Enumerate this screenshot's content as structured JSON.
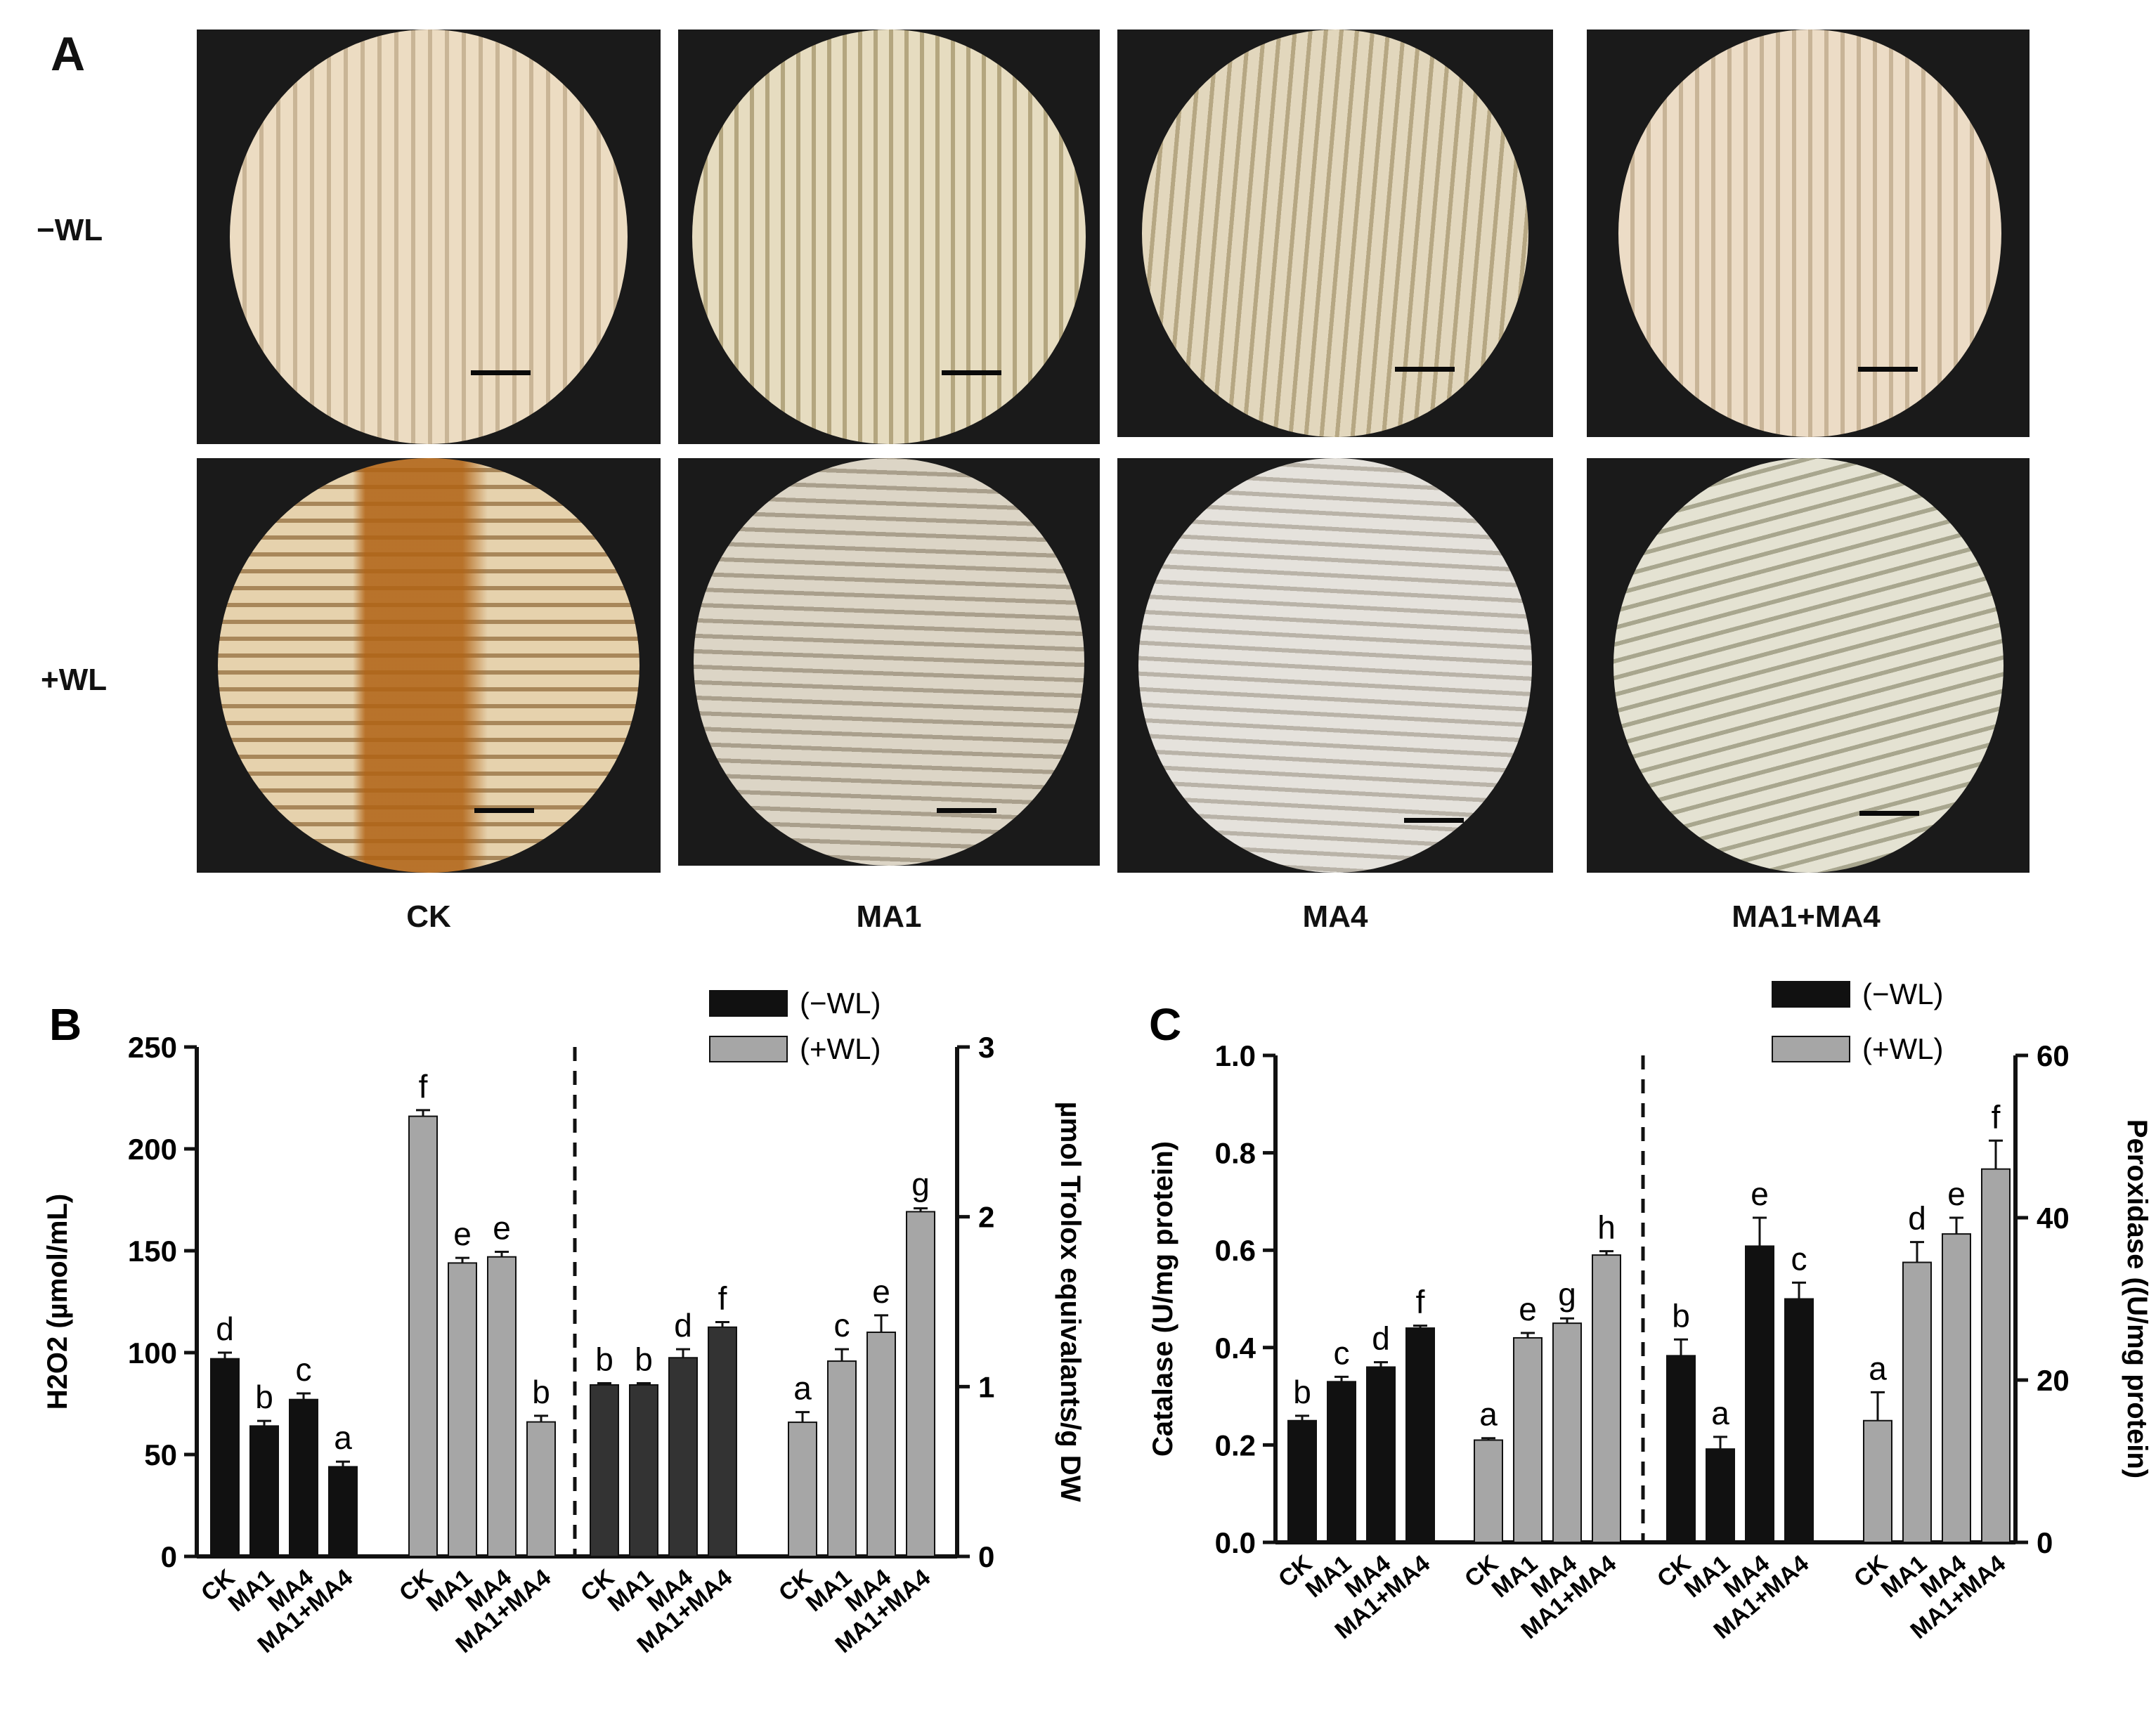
{
  "panel_a": {
    "letter": "A",
    "rows": [
      "−WL",
      "+WL"
    ],
    "cols": [
      "CK",
      "MA1",
      "MA4",
      "MA1+MA4"
    ]
  },
  "chart_data": [
    {
      "panel": "B",
      "type": "bar",
      "left_axis": {
        "label": "H2O2 (µmol/mL)",
        "ylim": [
          0,
          250
        ],
        "ticks": [
          0,
          50,
          100,
          150,
          200,
          250
        ]
      },
      "right_axis": {
        "label": "µmol Trolox equivalants/g DW",
        "ylim": [
          0,
          3
        ],
        "ticks": [
          0,
          1,
          2,
          3
        ]
      },
      "legend": {
        "position": "top-right",
        "entries": [
          {
            "label": "(−WL)",
            "color": "#111111"
          },
          {
            "label": "(+WL)",
            "color": "#a6a6a6"
          }
        ]
      },
      "categories": [
        "CK",
        "MA1",
        "MA4",
        "MA1+MA4"
      ],
      "groups": [
        {
          "axis": "left",
          "series": "(−WL)",
          "color": "#111111",
          "values": [
            97,
            64,
            77,
            44
          ],
          "errors": [
            3,
            2.5,
            3,
            2.5
          ],
          "letters": [
            "d",
            "b",
            "c",
            "a"
          ]
        },
        {
          "axis": "left",
          "series": "(+WL)",
          "color": "#a6a6a6",
          "values": [
            216,
            144,
            147,
            66
          ],
          "errors": [
            3,
            2.5,
            2.5,
            3
          ],
          "letters": [
            "f",
            "e",
            "e",
            "b"
          ]
        },
        {
          "axis": "right",
          "series": "(−WL)",
          "color": "#333333",
          "values": [
            1.01,
            1.01,
            1.17,
            1.35
          ],
          "errors": [
            0.01,
            0.01,
            0.05,
            0.03
          ],
          "letters": [
            "b",
            "b",
            "d",
            "f"
          ]
        },
        {
          "axis": "right",
          "series": "(+WL)",
          "color": "#a6a6a6",
          "values": [
            0.79,
            1.15,
            1.32,
            2.03
          ],
          "errors": [
            0.06,
            0.07,
            0.1,
            0.02
          ],
          "letters": [
            "a",
            "c",
            "e",
            "g"
          ]
        }
      ]
    },
    {
      "panel": "C",
      "type": "bar",
      "left_axis": {
        "label": "Catalase (U/mg protein)",
        "ylim": [
          0,
          1.0
        ],
        "ticks": [
          "0.0",
          "0.2",
          "0.4",
          "0.6",
          "0.8",
          "1.0"
        ]
      },
      "right_axis": {
        "label": "Peroxidase ((U/mg protein)",
        "ylim": [
          0,
          60
        ],
        "ticks": [
          0,
          20,
          40,
          60
        ]
      },
      "legend": {
        "position": "top-right",
        "entries": [
          {
            "label": "(−WL)",
            "color": "#111111"
          },
          {
            "label": "(+WL)",
            "color": "#a6a6a6"
          }
        ]
      },
      "categories": [
        "CK",
        "MA1",
        "MA4",
        "MA1+MA4"
      ],
      "groups": [
        {
          "axis": "left",
          "series": "(−WL)",
          "color": "#111111",
          "values": [
            0.25,
            0.33,
            0.36,
            0.44
          ],
          "errors": [
            0.01,
            0.01,
            0.01,
            0.005
          ],
          "letters": [
            "b",
            "c",
            "d",
            "f"
          ]
        },
        {
          "axis": "left",
          "series": "(+WL)",
          "color": "#a6a6a6",
          "values": [
            0.21,
            0.42,
            0.45,
            0.59
          ],
          "errors": [
            0.004,
            0.01,
            0.01,
            0.008
          ],
          "letters": [
            "a",
            "e",
            "g",
            "h"
          ]
        },
        {
          "axis": "right",
          "series": "(−WL)",
          "color": "#111111",
          "values": [
            23,
            11.5,
            36.5,
            30
          ],
          "errors": [
            2,
            1.5,
            3.5,
            2
          ],
          "letters": [
            "b",
            "a",
            "e",
            "c"
          ]
        },
        {
          "axis": "right",
          "series": "(+WL)",
          "color": "#a6a6a6",
          "values": [
            15,
            34.5,
            38,
            46
          ],
          "errors": [
            3.5,
            2.5,
            2,
            3.5
          ],
          "letters": [
            "a",
            "d",
            "e",
            "f"
          ]
        }
      ]
    }
  ]
}
